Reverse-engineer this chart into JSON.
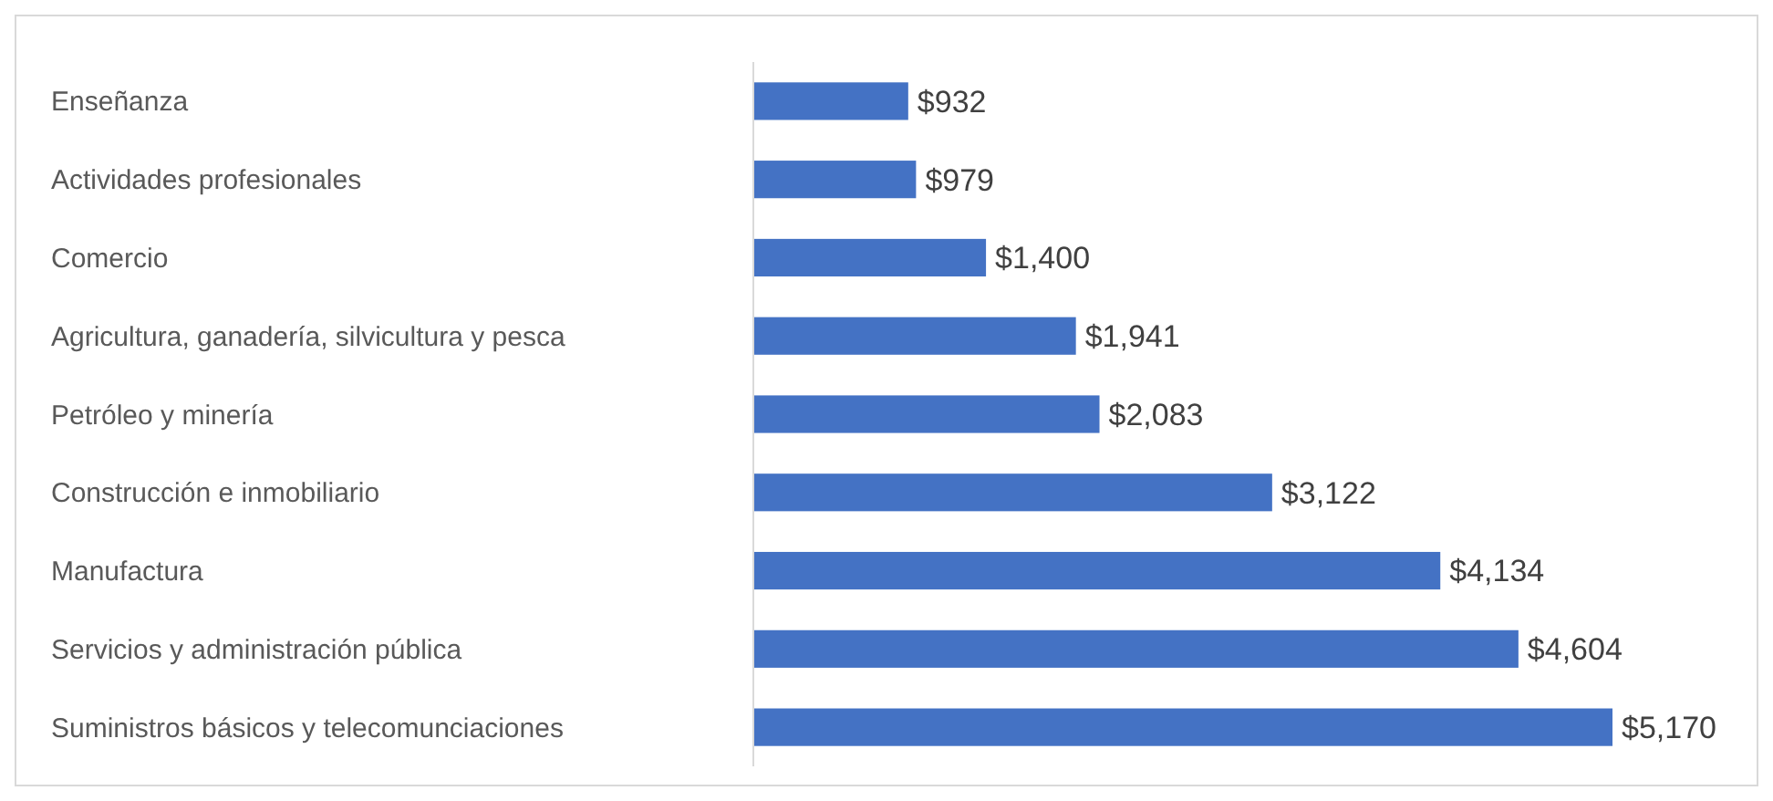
{
  "chart_data": {
    "type": "bar",
    "orientation": "horizontal",
    "categories": [
      "Enseñanza",
      "Actividades profesionales",
      "Comercio",
      "Agricultura, ganadería, silvicultura y pesca",
      "Petróleo y minería",
      "Construcción e inmobiliario",
      "Manufactura",
      "Servicios y administración pública",
      "Suministros básicos y telecomunciaciones"
    ],
    "values": [
      932,
      979,
      1400,
      1941,
      2083,
      3122,
      4134,
      4604,
      5170
    ],
    "value_labels": [
      "$932",
      "$979",
      "$1,400",
      "$1,941",
      "$2,083",
      "$3,122",
      "$4,134",
      "$4,604",
      "$5,170"
    ],
    "color": "#4472c4"
  }
}
